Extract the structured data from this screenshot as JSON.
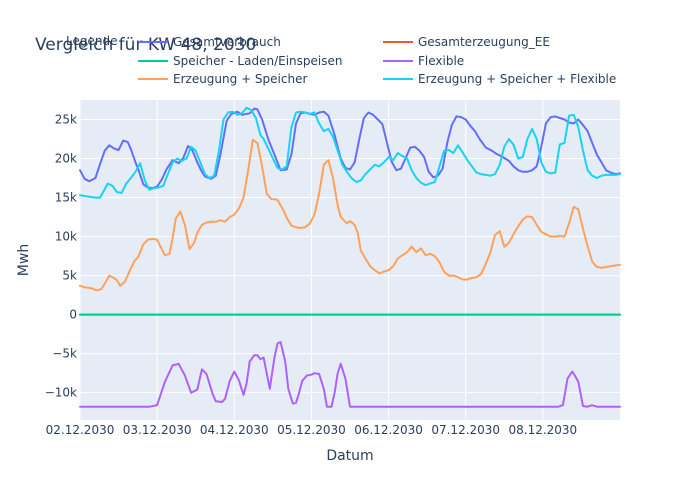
{
  "chart_data": {
    "type": "line",
    "title": "Vergleich für KW 48, 2030",
    "legend_title": "Legende",
    "legend_position": "top",
    "xlabel": "Datum",
    "ylabel": "Mwh",
    "x_ticks": [
      "02.12.2030",
      "03.12.2030",
      "04.12.2030",
      "05.12.2030",
      "06.12.2030",
      "07.12.2030",
      "08.12.2030"
    ],
    "xlim": [
      0,
      7
    ],
    "ylim": [
      -13500,
      27500
    ],
    "y_ticks": [
      -10000,
      -5000,
      0,
      5000,
      10000,
      15000,
      20000,
      25000
    ],
    "y_tick_labels": [
      "−10k",
      "−5k",
      "0",
      "5k",
      "10k",
      "15k",
      "20k",
      "25k"
    ],
    "grid": true,
    "series": [
      {
        "name": "Gesamtverbrauch",
        "color": "#636efa",
        "x": [
          0,
          0.06,
          0.12,
          0.2,
          0.25,
          0.32,
          0.38,
          0.44,
          0.5,
          0.56,
          0.62,
          0.66,
          0.72,
          0.76,
          0.82,
          0.88,
          0.94,
          1.0,
          1.06,
          1.12,
          1.2,
          1.28,
          1.34,
          1.4,
          1.46,
          1.52,
          1.58,
          1.62,
          1.7,
          1.76,
          1.82,
          1.9,
          1.96,
          2.04,
          2.1,
          2.2,
          2.26,
          2.3,
          2.36,
          2.44,
          2.5,
          2.56,
          2.6,
          2.68,
          2.74,
          2.8,
          2.86,
          2.92,
          2.98,
          3.04,
          3.1,
          3.16,
          3.22,
          3.3,
          3.38,
          3.44,
          3.5,
          3.56,
          3.62,
          3.68,
          3.74,
          3.8,
          3.86,
          3.92,
          3.98,
          4.04,
          4.1,
          4.16,
          4.22,
          4.28,
          4.34,
          4.4,
          4.46,
          4.52,
          4.58,
          4.64,
          4.7,
          4.76,
          4.82,
          4.88,
          4.94,
          5.0,
          5.06,
          5.12,
          5.18,
          5.26,
          5.34,
          5.4,
          5.48,
          5.56,
          5.62,
          5.68,
          5.74,
          5.8,
          5.86,
          5.92,
          5.98,
          6.04,
          6.1,
          6.16,
          6.22,
          6.28,
          6.34,
          6.4,
          6.46,
          6.52,
          6.58,
          6.64,
          6.7,
          6.76,
          6.82,
          6.88,
          6.94,
          7.0
        ],
        "y": [
          18500,
          17400,
          17100,
          17500,
          19000,
          21000,
          21700,
          21300,
          21100,
          22300,
          22100,
          21200,
          19500,
          18500,
          16700,
          16300,
          16200,
          16400,
          17300,
          18600,
          19800,
          19400,
          20100,
          21600,
          21000,
          19500,
          18300,
          17700,
          17400,
          17800,
          20500,
          24800,
          25700,
          26000,
          25600,
          25800,
          26400,
          26300,
          25000,
          22500,
          21000,
          19500,
          18500,
          18600,
          20500,
          24500,
          25800,
          25900,
          25700,
          25600,
          25900,
          26000,
          25500,
          23000,
          20000,
          18800,
          18600,
          19500,
          22500,
          25200,
          25900,
          25600,
          25000,
          24400,
          22000,
          19600,
          18500,
          18700,
          20000,
          21400,
          21500,
          21000,
          20200,
          18300,
          17600,
          17800,
          18700,
          22000,
          24300,
          25400,
          25300,
          25000,
          24200,
          23500,
          22500,
          21400,
          21000,
          20600,
          20200,
          19700,
          19000,
          18500,
          18300,
          18300,
          18500,
          19000,
          21500,
          24500,
          25300,
          25400,
          25200,
          25000,
          24600,
          24500,
          25000,
          24300,
          23500,
          22000,
          20500,
          19500,
          18500,
          18200,
          18000,
          18100
        ],
        "line_width": 2
      },
      {
        "name": "Gesamterzeugung_EE",
        "color": "#ef553b",
        "x": [
          0,
          7
        ],
        "y": [
          0,
          0
        ],
        "line_width": 2
      },
      {
        "name": "Speicher - Laden/Einspeisen",
        "color": "#00cc96",
        "x": [
          0,
          7
        ],
        "y": [
          0,
          0
        ],
        "line_width": 2
      },
      {
        "name": "Flexible",
        "color": "#ab63fa",
        "x": [
          0,
          0.3,
          0.6,
          0.9,
          1.0,
          1.1,
          1.2,
          1.28,
          1.36,
          1.44,
          1.52,
          1.58,
          1.64,
          1.72,
          1.76,
          1.84,
          1.88,
          1.94,
          2.0,
          2.06,
          2.12,
          2.16,
          2.2,
          2.26,
          2.3,
          2.34,
          2.38,
          2.42,
          2.46,
          2.52,
          2.56,
          2.6,
          2.66,
          2.7,
          2.76,
          2.8,
          2.84,
          2.88,
          2.94,
          3.0,
          3.04,
          3.1,
          3.16,
          3.2,
          3.26,
          3.3,
          3.34,
          3.38,
          3.44,
          3.5,
          3.56,
          3.62,
          3.68,
          3.74,
          3.8,
          3.9,
          4.1,
          4.4,
          4.8,
          5.2,
          5.6,
          6.0,
          6.04,
          6.08,
          6.12,
          6.16,
          6.2,
          6.26,
          6.32,
          6.38,
          6.42,
          6.46,
          6.52,
          6.58,
          6.64,
          6.7,
          6.76,
          6.82,
          6.88,
          6.94,
          7.0
        ],
        "y": [
          -11800,
          -11800,
          -11800,
          -11800,
          -11600,
          -8600,
          -6500,
          -6300,
          -7800,
          -10000,
          -9600,
          -7000,
          -7600,
          -10200,
          -11100,
          -11200,
          -10800,
          -8500,
          -7300,
          -8400,
          -10300,
          -8800,
          -6000,
          -5200,
          -5200,
          -5700,
          -5500,
          -7500,
          -9500,
          -5500,
          -3700,
          -3500,
          -6000,
          -9500,
          -11400,
          -11300,
          -10000,
          -8500,
          -7800,
          -7700,
          -7500,
          -7600,
          -9500,
          -11800,
          -11800,
          -10000,
          -7500,
          -6300,
          -8200,
          -11800,
          -11800,
          -11800,
          -11800,
          -11800,
          -11800,
          -11800,
          -11800,
          -11800,
          -11800,
          -11800,
          -11800,
          -11800,
          -11800,
          -11800,
          -11800,
          -11800,
          -11800,
          -11600,
          -8200,
          -7300,
          -7900,
          -8600,
          -11700,
          -11800,
          -11600,
          -11800,
          -11800,
          -11800,
          -11800,
          -11800,
          -11800
        ],
        "line_width": 2
      },
      {
        "name": "Erzeugung + Speicher",
        "color": "#ffa15a",
        "x": [
          0,
          0.06,
          0.14,
          0.22,
          0.28,
          0.34,
          0.38,
          0.44,
          0.48,
          0.52,
          0.58,
          0.64,
          0.7,
          0.76,
          0.82,
          0.88,
          0.94,
          1.0,
          1.04,
          1.1,
          1.16,
          1.2,
          1.24,
          1.3,
          1.36,
          1.42,
          1.48,
          1.52,
          1.58,
          1.64,
          1.7,
          1.76,
          1.82,
          1.88,
          1.94,
          2.0,
          2.06,
          2.12,
          2.18,
          2.24,
          2.3,
          2.36,
          2.42,
          2.48,
          2.52,
          2.56,
          2.6,
          2.64,
          2.68,
          2.74,
          2.8,
          2.86,
          2.92,
          2.98,
          3.04,
          3.1,
          3.16,
          3.22,
          3.28,
          3.34,
          3.38,
          3.42,
          3.46,
          3.5,
          3.56,
          3.6,
          3.64,
          3.7,
          3.76,
          3.82,
          3.88,
          3.94,
          4.0,
          4.06,
          4.12,
          4.18,
          4.24,
          4.3,
          4.36,
          4.42,
          4.48,
          4.54,
          4.6,
          4.66,
          4.72,
          4.78,
          4.84,
          4.9,
          4.96,
          5.02,
          5.08,
          5.14,
          5.2,
          5.26,
          5.32,
          5.38,
          5.44,
          5.5,
          5.56,
          5.62,
          5.68,
          5.74,
          5.8,
          5.86,
          5.92,
          5.98,
          6.04,
          6.1,
          6.16,
          6.22,
          6.28,
          6.34,
          6.4,
          6.46,
          6.52,
          6.58,
          6.64,
          6.7,
          6.76,
          6.82,
          6.88,
          6.94,
          7.0
        ],
        "y": [
          3700,
          3500,
          3400,
          3100,
          3300,
          4300,
          5000,
          4700,
          4400,
          3700,
          4200,
          5500,
          6800,
          7500,
          9000,
          9600,
          9700,
          9600,
          8800,
          7600,
          7800,
          9800,
          12300,
          13200,
          11500,
          8400,
          9200,
          10500,
          11500,
          11800,
          11900,
          11900,
          12100,
          11900,
          12500,
          12800,
          13600,
          15000,
          18500,
          22400,
          22000,
          19000,
          15500,
          14800,
          14800,
          14700,
          14000,
          13300,
          12400,
          11400,
          11200,
          11100,
          11200,
          11700,
          12800,
          15500,
          19200,
          19800,
          17500,
          14000,
          12500,
          12100,
          11700,
          12000,
          11500,
          10500,
          8200,
          7200,
          6200,
          5700,
          5300,
          5500,
          5700,
          6200,
          7200,
          7600,
          8000,
          8700,
          8000,
          8500,
          7600,
          7800,
          7500,
          6700,
          5500,
          5000,
          5000,
          4800,
          4500,
          4500,
          4700,
          4800,
          5200,
          6500,
          8000,
          10200,
          10700,
          8700,
          9200,
          10300,
          11300,
          12200,
          12600,
          12500,
          11500,
          10600,
          10300,
          10000,
          10000,
          10100,
          10000,
          11700,
          13800,
          13500,
          11000,
          8800,
          6800,
          6100,
          6000,
          6100,
          6200,
          6300,
          6400
        ],
        "line_width": 2
      },
      {
        "name": "Erzeugung + Speicher + Flexible",
        "color": "#19d3f3",
        "x": [
          0,
          0.06,
          0.12,
          0.2,
          0.26,
          0.3,
          0.36,
          0.42,
          0.48,
          0.54,
          0.6,
          0.66,
          0.72,
          0.78,
          0.84,
          0.9,
          0.96,
          1.02,
          1.08,
          1.14,
          1.2,
          1.26,
          1.32,
          1.38,
          1.44,
          1.5,
          1.56,
          1.62,
          1.68,
          1.74,
          1.8,
          1.86,
          1.92,
          1.98,
          2.04,
          2.1,
          2.16,
          2.22,
          2.28,
          2.34,
          2.38,
          2.44,
          2.5,
          2.56,
          2.62,
          2.68,
          2.74,
          2.8,
          2.86,
          2.92,
          2.98,
          3.04,
          3.1,
          3.16,
          3.22,
          3.28,
          3.34,
          3.4,
          3.46,
          3.52,
          3.58,
          3.64,
          3.7,
          3.76,
          3.82,
          3.88,
          3.94,
          4.0,
          4.06,
          4.12,
          4.18,
          4.24,
          4.3,
          4.36,
          4.42,
          4.48,
          4.54,
          4.6,
          4.66,
          4.72,
          4.78,
          4.84,
          4.9,
          4.96,
          5.02,
          5.08,
          5.14,
          5.2,
          5.26,
          5.32,
          5.38,
          5.44,
          5.5,
          5.56,
          5.62,
          5.68,
          5.74,
          5.8,
          5.86,
          5.92,
          5.98,
          6.04,
          6.1,
          6.16,
          6.22,
          6.28,
          6.34,
          6.4,
          6.46,
          6.52,
          6.58,
          6.64,
          6.7,
          6.76,
          6.82,
          6.88,
          6.94,
          7.0
        ],
        "y": [
          15300,
          15200,
          15100,
          15000,
          15000,
          15700,
          16800,
          16500,
          15700,
          15600,
          16800,
          17500,
          18300,
          19400,
          17200,
          16000,
          16200,
          16300,
          16500,
          18000,
          19500,
          20000,
          19700,
          20000,
          21500,
          21000,
          19500,
          18000,
          17500,
          17800,
          21000,
          25000,
          25900,
          26000,
          25600,
          25800,
          26500,
          26200,
          25200,
          23000,
          22500,
          21300,
          20000,
          18800,
          18600,
          19000,
          24000,
          25900,
          26000,
          25900,
          25700,
          25900,
          24500,
          23500,
          23800,
          22800,
          21000,
          19200,
          18300,
          17500,
          17000,
          17200,
          18000,
          18600,
          19200,
          19000,
          19500,
          20200,
          19800,
          20700,
          20300,
          20000,
          18500,
          17500,
          16900,
          16600,
          16800,
          17000,
          19000,
          21000,
          21100,
          20700,
          21700,
          20800,
          19800,
          19000,
          18200,
          18000,
          17900,
          17800,
          18000,
          19200,
          21500,
          22500,
          21800,
          20000,
          20200,
          22500,
          23800,
          22500,
          19500,
          18300,
          18100,
          18200,
          21800,
          22000,
          25500,
          25600,
          24000,
          21000,
          18500,
          17800,
          17500,
          17800,
          17900,
          17900,
          17900,
          18000
        ],
        "line_width": 2
      }
    ]
  }
}
